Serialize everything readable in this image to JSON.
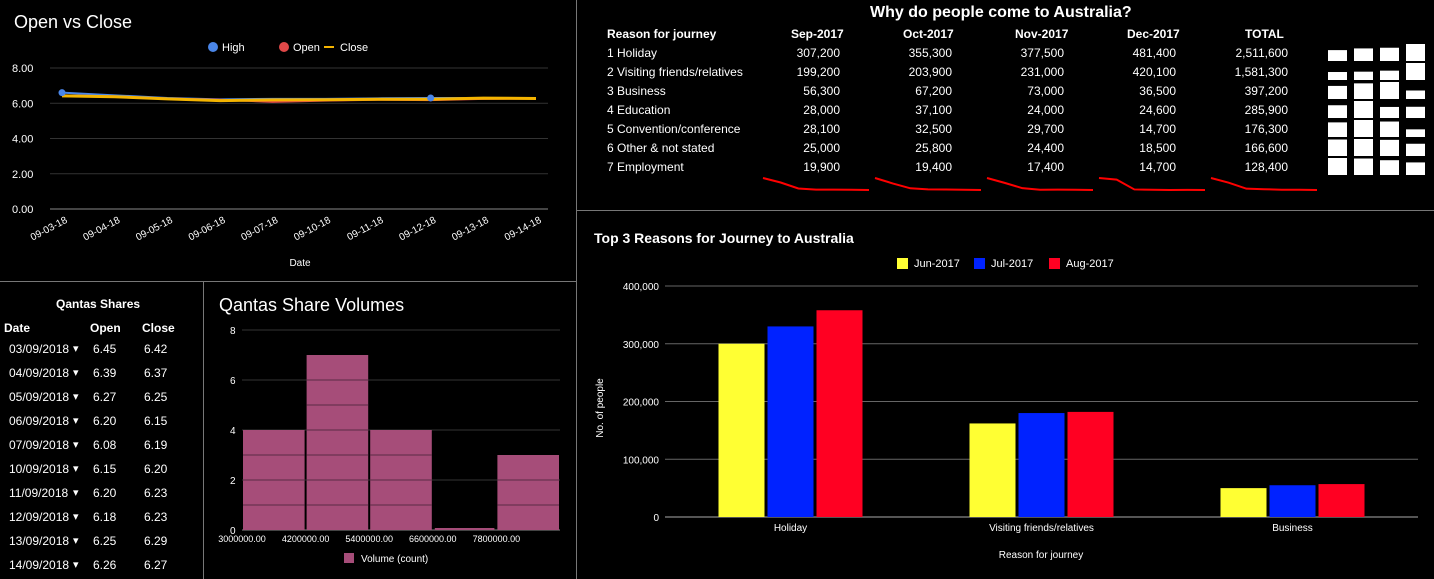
{
  "open_close": {
    "title": "Open vs Close",
    "legend": [
      "High",
      "Open",
      "Close"
    ],
    "xlabel": "Date",
    "yticks": [
      "8.00",
      "6.00",
      "4.00",
      "2.00",
      "0.00"
    ]
  },
  "qantas_table": {
    "title": "Qantas Shares",
    "headers": [
      "Date",
      "Open",
      "Close"
    ],
    "rows": [
      {
        "date": "03/09/2018",
        "open": "6.45",
        "close": "6.42"
      },
      {
        "date": "04/09/2018",
        "open": "6.39",
        "close": "6.37"
      },
      {
        "date": "05/09/2018",
        "open": "6.27",
        "close": "6.25"
      },
      {
        "date": "06/09/2018",
        "open": "6.20",
        "close": "6.15"
      },
      {
        "date": "07/09/2018",
        "open": "6.08",
        "close": "6.19"
      },
      {
        "date": "10/09/2018",
        "open": "6.15",
        "close": "6.20"
      },
      {
        "date": "11/09/2018",
        "open": "6.20",
        "close": "6.23"
      },
      {
        "date": "12/09/2018",
        "open": "6.18",
        "close": "6.23"
      },
      {
        "date": "13/09/2018",
        "open": "6.25",
        "close": "6.29"
      },
      {
        "date": "14/09/2018",
        "open": "6.26",
        "close": "6.27"
      }
    ]
  },
  "volumes": {
    "title": "Qantas Share Volumes",
    "legend": "Volume (count)",
    "yticks": [
      "8",
      "6",
      "4",
      "2",
      "0"
    ],
    "xticks": [
      "3000000.00",
      "4200000.00",
      "5400000.00",
      "6600000.00",
      "7800000.00"
    ]
  },
  "why_table": {
    "title": "Why do people come to Australia?",
    "headers": [
      "Reason for journey",
      "Sep-2017",
      "Oct-2017",
      "Nov-2017",
      "Dec-2017",
      "TOTAL"
    ],
    "rows": [
      {
        "reason": "1 Holiday",
        "vals": [
          "307,200",
          "355,300",
          "377,500",
          "481,400",
          "2,511,600"
        ]
      },
      {
        "reason": "2 Visiting friends/relatives",
        "vals": [
          "199,200",
          "203,900",
          "231,000",
          "420,100",
          "1,581,300"
        ]
      },
      {
        "reason": "3 Business",
        "vals": [
          "56,300",
          "67,200",
          "73,000",
          "36,500",
          "397,200"
        ]
      },
      {
        "reason": "4 Education",
        "vals": [
          "28,000",
          "37,100",
          "24,000",
          "24,600",
          "285,900"
        ]
      },
      {
        "reason": "5 Convention/conference",
        "vals": [
          "28,100",
          "32,500",
          "29,700",
          "14,700",
          "176,300"
        ]
      },
      {
        "reason": "6 Other & not stated",
        "vals": [
          "25,000",
          "25,800",
          "24,400",
          "18,500",
          "166,600"
        ]
      },
      {
        "reason": "7 Employment",
        "vals": [
          "19,900",
          "19,400",
          "17,400",
          "14,700",
          "128,400"
        ]
      }
    ]
  },
  "top3": {
    "title": "Top 3 Reasons for Journey to Australia",
    "ylabel": "No. of people",
    "xlabel": "Reason for journey",
    "yticks": [
      "400,000",
      "300,000",
      "200,000",
      "100,000",
      "0"
    ]
  },
  "colors": {
    "high": "#4a86e8",
    "open": "#e04848",
    "close": "#f4b400",
    "volume_bar": "#a64d79",
    "yellow": "#ffff33",
    "blue": "#0022ff",
    "red": "#ff0022",
    "spark": "#ff0000"
  },
  "chart_data": [
    {
      "type": "line",
      "title": "Open vs Close",
      "x": [
        "09-03-18",
        "09-04-18",
        "09-05-18",
        "09-06-18",
        "09-07-18",
        "09-10-18",
        "09-11-18",
        "09-12-18",
        "09-13-18",
        "09-14-18"
      ],
      "xlabel": "Date",
      "ylim": [
        0,
        8
      ],
      "series": [
        {
          "name": "High",
          "values": [
            6.6,
            6.45,
            6.3,
            6.22,
            6.25,
            6.25,
            6.28,
            6.3,
            6.3,
            6.3
          ]
        },
        {
          "name": "Open",
          "values": [
            6.45,
            6.39,
            6.27,
            6.2,
            6.08,
            6.15,
            6.2,
            6.18,
            6.25,
            6.26
          ]
        },
        {
          "name": "Close",
          "values": [
            6.42,
            6.37,
            6.25,
            6.15,
            6.19,
            6.2,
            6.23,
            6.23,
            6.29,
            6.27
          ]
        }
      ]
    },
    {
      "type": "bar",
      "title": "Qantas Share Volumes",
      "bins": [
        [
          3000000,
          4200000
        ],
        [
          4200000,
          5400000
        ],
        [
          5400000,
          6600000
        ],
        [
          6600000,
          7800000
        ],
        [
          7800000,
          9000000
        ]
      ],
      "values": [
        4,
        7,
        4,
        0,
        3
      ],
      "ylim": [
        0,
        8
      ],
      "series_name": "Volume (count)"
    },
    {
      "type": "bar",
      "title": "Top 3 Reasons for Journey to Australia",
      "categories": [
        "Holiday",
        "Visiting friends/relatives",
        "Business"
      ],
      "xlabel": "Reason for journey",
      "ylabel": "No. of people",
      "ylim": [
        0,
        400000
      ],
      "series": [
        {
          "name": "Jun-2017",
          "values": [
            300000,
            162000,
            50000
          ]
        },
        {
          "name": "Jul-2017",
          "values": [
            330000,
            180000,
            55000
          ]
        },
        {
          "name": "Aug-2017",
          "values": [
            358000,
            182000,
            57000
          ]
        }
      ]
    },
    {
      "type": "table",
      "title": "Why do people come to Australia?",
      "sparklines": [
        [
          307200,
          199200,
          56300,
          28000,
          28100,
          25000,
          19900
        ],
        [
          355300,
          203900,
          67200,
          37100,
          32500,
          25800,
          19400
        ],
        [
          377500,
          231000,
          73000,
          24000,
          29700,
          24400,
          17400
        ],
        [
          481400,
          420100,
          36500,
          24600,
          14700,
          18500,
          14700
        ],
        [
          2511600,
          1581300,
          397200,
          285900,
          176300,
          166600,
          128400
        ]
      ],
      "row_bars": [
        [
          0.64,
          0.74,
          0.78,
          1.0
        ],
        [
          0.47,
          0.49,
          0.55,
          1.0
        ],
        [
          0.77,
          0.92,
          1.0,
          0.5
        ],
        [
          0.75,
          1.0,
          0.65,
          0.66
        ],
        [
          0.86,
          1.0,
          0.91,
          0.45
        ],
        [
          0.97,
          1.0,
          0.95,
          0.72
        ],
        [
          1.0,
          0.97,
          0.87,
          0.74
        ]
      ]
    }
  ]
}
